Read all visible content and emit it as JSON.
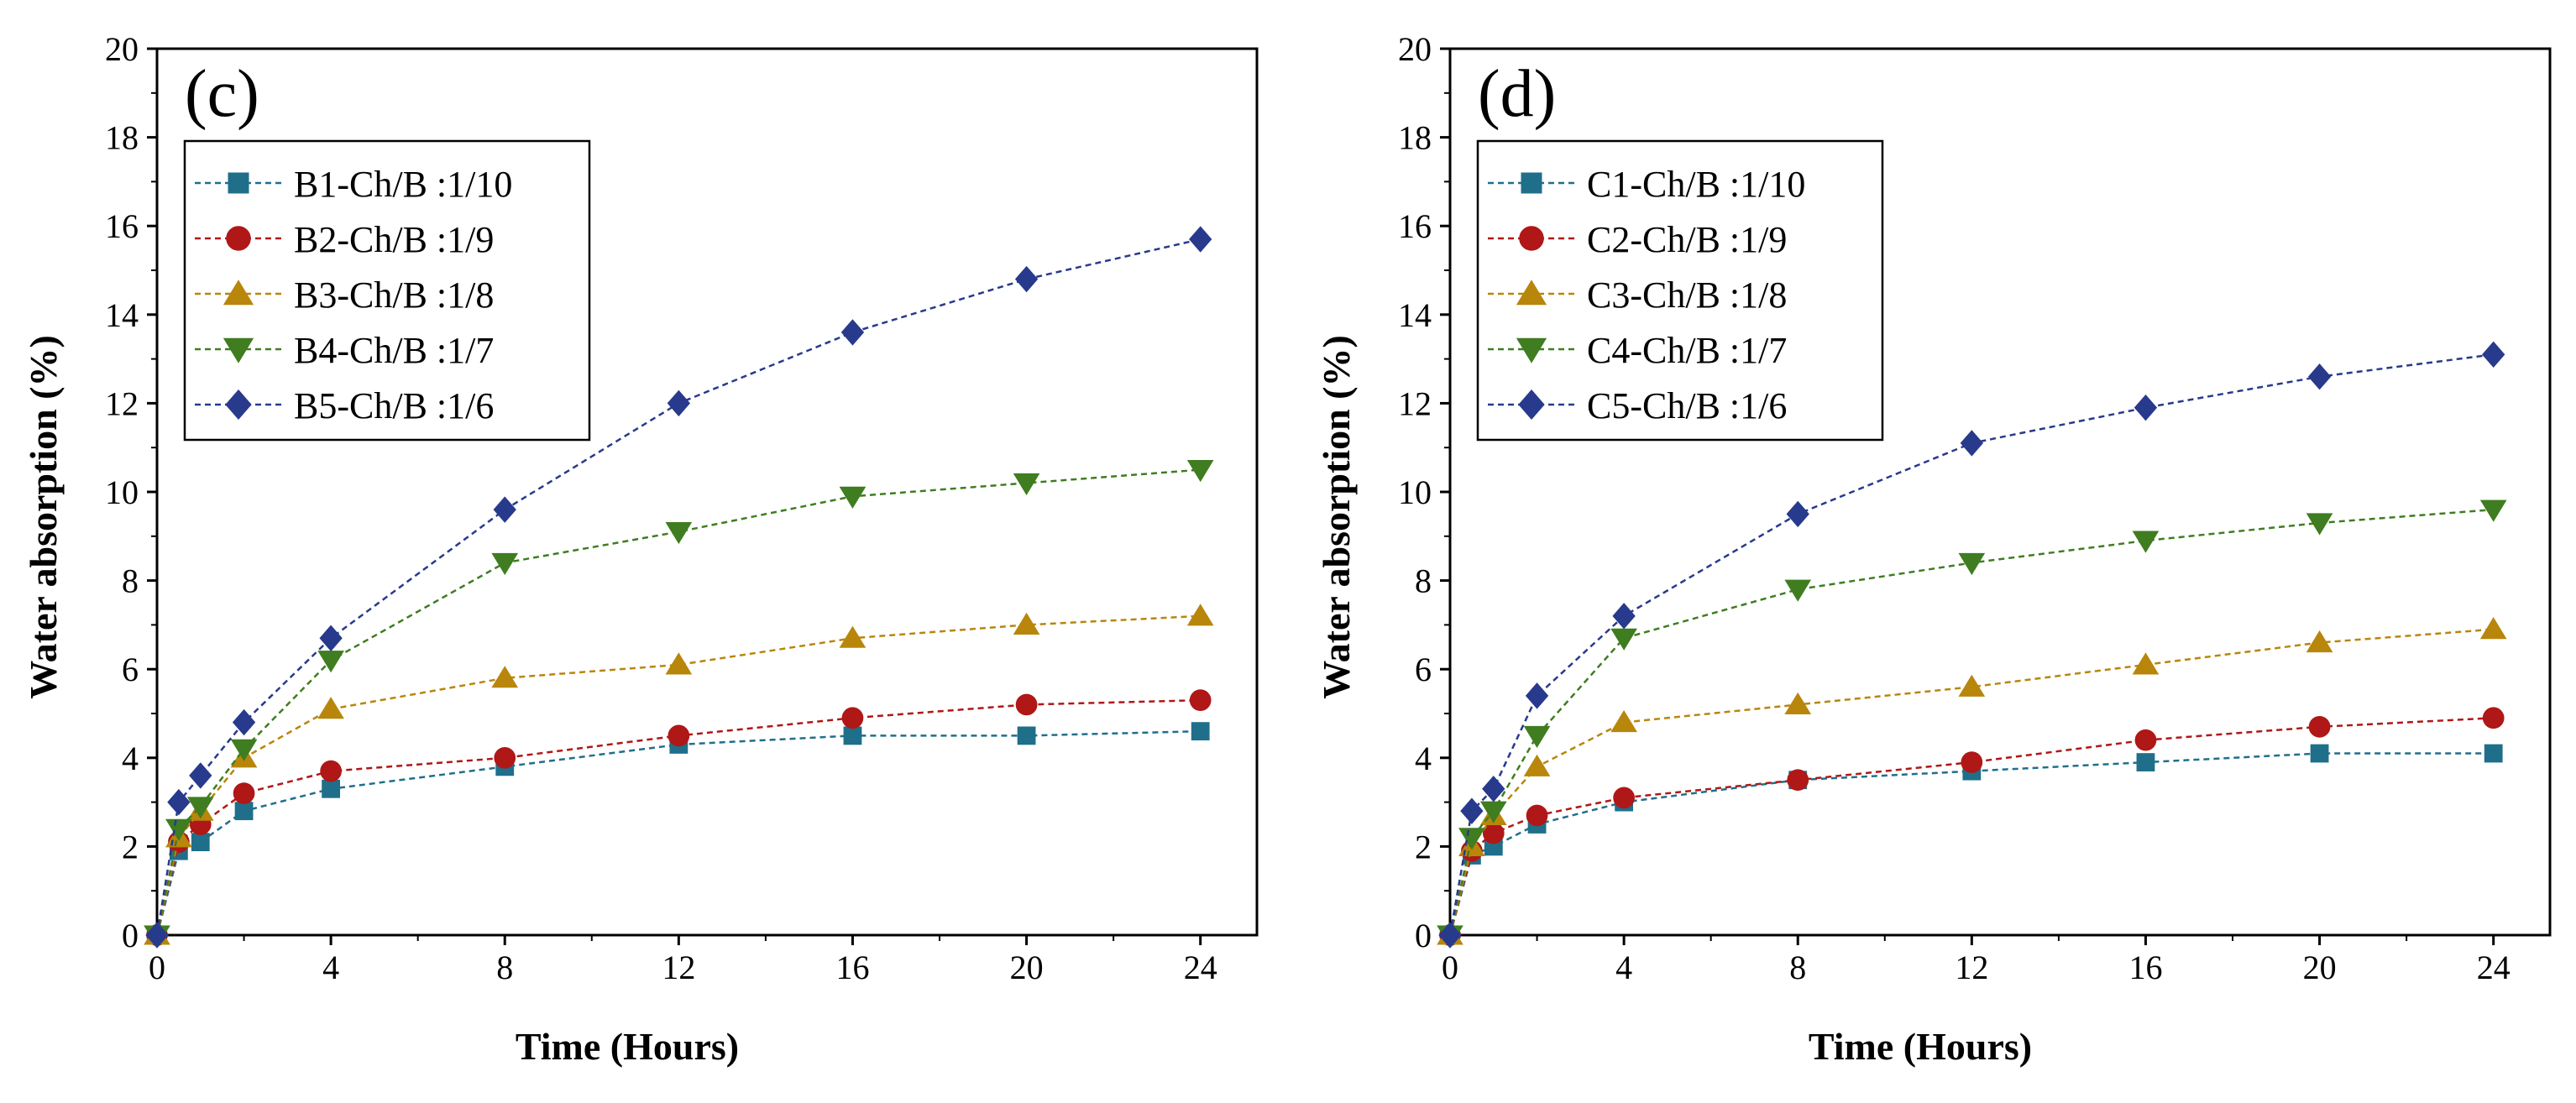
{
  "chart_data": [
    {
      "type": "line",
      "panel_label": "(c)",
      "xlabel": "Time (Hours)",
      "ylabel": "Water absorption (%)",
      "xlim": [
        0,
        25.3
      ],
      "ylim": [
        0,
        20
      ],
      "xticks": [
        0,
        4,
        8,
        12,
        16,
        20,
        24
      ],
      "yticks": [
        0,
        2,
        4,
        6,
        8,
        10,
        12,
        14,
        16,
        18,
        20
      ],
      "x": [
        0,
        0.5,
        1,
        2,
        4,
        8,
        12,
        16,
        20,
        24
      ],
      "legend_position": "top-left",
      "series": [
        {
          "name": "B1-Ch/B :1/10",
          "marker": "square",
          "color": "#1f6f8b",
          "values": [
            0,
            1.9,
            2.1,
            2.8,
            3.3,
            3.8,
            4.3,
            4.5,
            4.5,
            4.6
          ]
        },
        {
          "name": "B2-Ch/B :1/9",
          "marker": "circle",
          "color": "#b01717",
          "values": [
            0,
            2.1,
            2.5,
            3.2,
            3.7,
            4.0,
            4.5,
            4.9,
            5.2,
            5.3
          ]
        },
        {
          "name": "B3-Ch/B :1/8",
          "marker": "triangle-up",
          "color": "#b8860b",
          "values": [
            0,
            2.2,
            2.8,
            4.0,
            5.1,
            5.8,
            6.1,
            6.7,
            7.0,
            7.2
          ]
        },
        {
          "name": "B4-Ch/B :1/7",
          "marker": "triangle-down",
          "color": "#3f7d20",
          "values": [
            0,
            2.4,
            2.9,
            4.2,
            6.2,
            8.4,
            9.1,
            9.9,
            10.2,
            10.5
          ]
        },
        {
          "name": "B5-Ch/B :1/6",
          "marker": "diamond",
          "color": "#283a8c",
          "values": [
            0,
            3.0,
            3.6,
            4.8,
            6.7,
            9.6,
            12.0,
            13.6,
            14.8,
            15.7
          ]
        }
      ]
    },
    {
      "type": "line",
      "panel_label": "(d)",
      "xlabel": "Time (Hours)",
      "ylabel": "Water absorption (%)",
      "xlim": [
        0,
        25.3
      ],
      "ylim": [
        0,
        20
      ],
      "xticks": [
        0,
        4,
        8,
        12,
        16,
        20,
        24
      ],
      "yticks": [
        0,
        2,
        4,
        6,
        8,
        10,
        12,
        14,
        16,
        18,
        20
      ],
      "x": [
        0,
        0.5,
        1,
        2,
        4,
        8,
        12,
        16,
        20,
        24
      ],
      "legend_position": "top-left",
      "series": [
        {
          "name": "C1-Ch/B :1/10",
          "marker": "square",
          "color": "#1f6f8b",
          "values": [
            0,
            1.8,
            2.0,
            2.5,
            3.0,
            3.5,
            3.7,
            3.9,
            4.1,
            4.1
          ]
        },
        {
          "name": "C2-Ch/B :1/9",
          "marker": "circle",
          "color": "#b01717",
          "values": [
            0,
            1.9,
            2.3,
            2.7,
            3.1,
            3.5,
            3.9,
            4.4,
            4.7,
            4.9
          ]
        },
        {
          "name": "C3-Ch/B :1/8",
          "marker": "triangle-up",
          "color": "#b8860b",
          "values": [
            0,
            2.0,
            2.7,
            3.8,
            4.8,
            5.2,
            5.6,
            6.1,
            6.6,
            6.9
          ]
        },
        {
          "name": "C4-Ch/B :1/7",
          "marker": "triangle-down",
          "color": "#3f7d20",
          "values": [
            0,
            2.2,
            2.8,
            4.5,
            6.7,
            7.8,
            8.4,
            8.9,
            9.3,
            9.6
          ]
        },
        {
          "name": "C5-Ch/B :1/6",
          "marker": "diamond",
          "color": "#283a8c",
          "values": [
            0,
            2.8,
            3.3,
            5.4,
            7.2,
            9.5,
            11.1,
            11.9,
            12.6,
            13.1
          ]
        }
      ]
    }
  ]
}
